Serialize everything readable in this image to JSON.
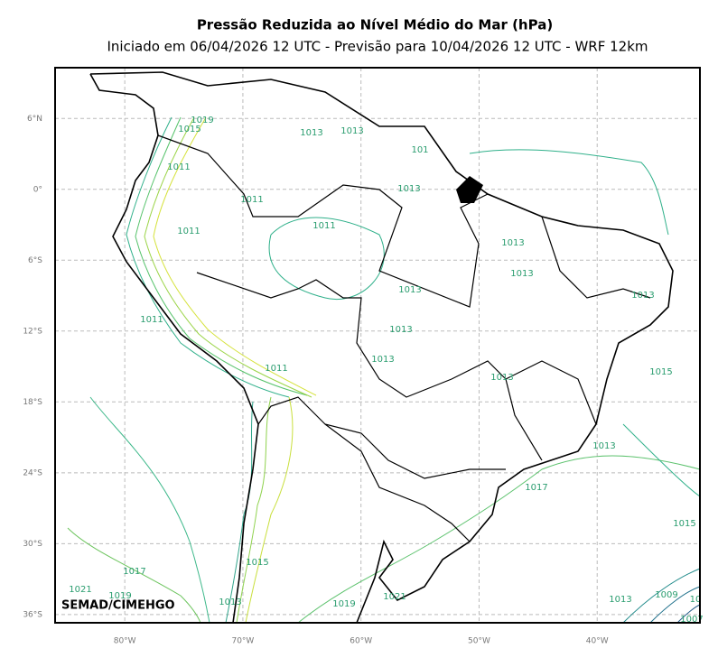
{
  "map": {
    "title": "Pressão Reduzida ao Nível Médio do Mar (hPa)",
    "subtitle": "Iniciado em 06/04/2026 12 UTC - Previsão para 10/04/2026 12 UTC - WRF 12km",
    "lonlim": [
      -85.9,
      -31.3
    ],
    "latlim": [
      -36.7,
      10.3
    ],
    "lonticks": [
      {
        "value": -80,
        "label": "80°W"
      },
      {
        "value": -70,
        "label": "70°W"
      },
      {
        "value": -60,
        "label": "60°W"
      },
      {
        "value": -50,
        "label": "50°W"
      },
      {
        "value": -40,
        "label": "40°W"
      }
    ],
    "latticks": [
      {
        "value": 6,
        "label": "6°N"
      },
      {
        "value": 0,
        "label": "0°"
      },
      {
        "value": -6,
        "label": "6°S"
      },
      {
        "value": -12,
        "label": "12°S"
      },
      {
        "value": -18,
        "label": "18°S"
      },
      {
        "value": -24,
        "label": "24°S"
      },
      {
        "value": -30,
        "label": "30°S"
      },
      {
        "value": -36,
        "label": "36°S"
      }
    ],
    "grid": true,
    "contour_labels": [
      "1019",
      "1015",
      "1013",
      "1013",
      "1011",
      "1011",
      "101",
      "1013",
      "1011",
      "1011",
      "1013",
      "1013",
      "1013",
      "1013",
      "1011",
      "1013",
      "1013",
      "1011",
      "1013",
      "1015",
      "1013",
      "1017",
      "1015",
      "1017",
      "1015",
      "1021",
      "1019",
      "1013",
      "1019",
      "1021",
      "1013",
      "1009",
      "1007",
      "10"
    ],
    "credit": "SEMAD/CIMEHGO"
  }
}
